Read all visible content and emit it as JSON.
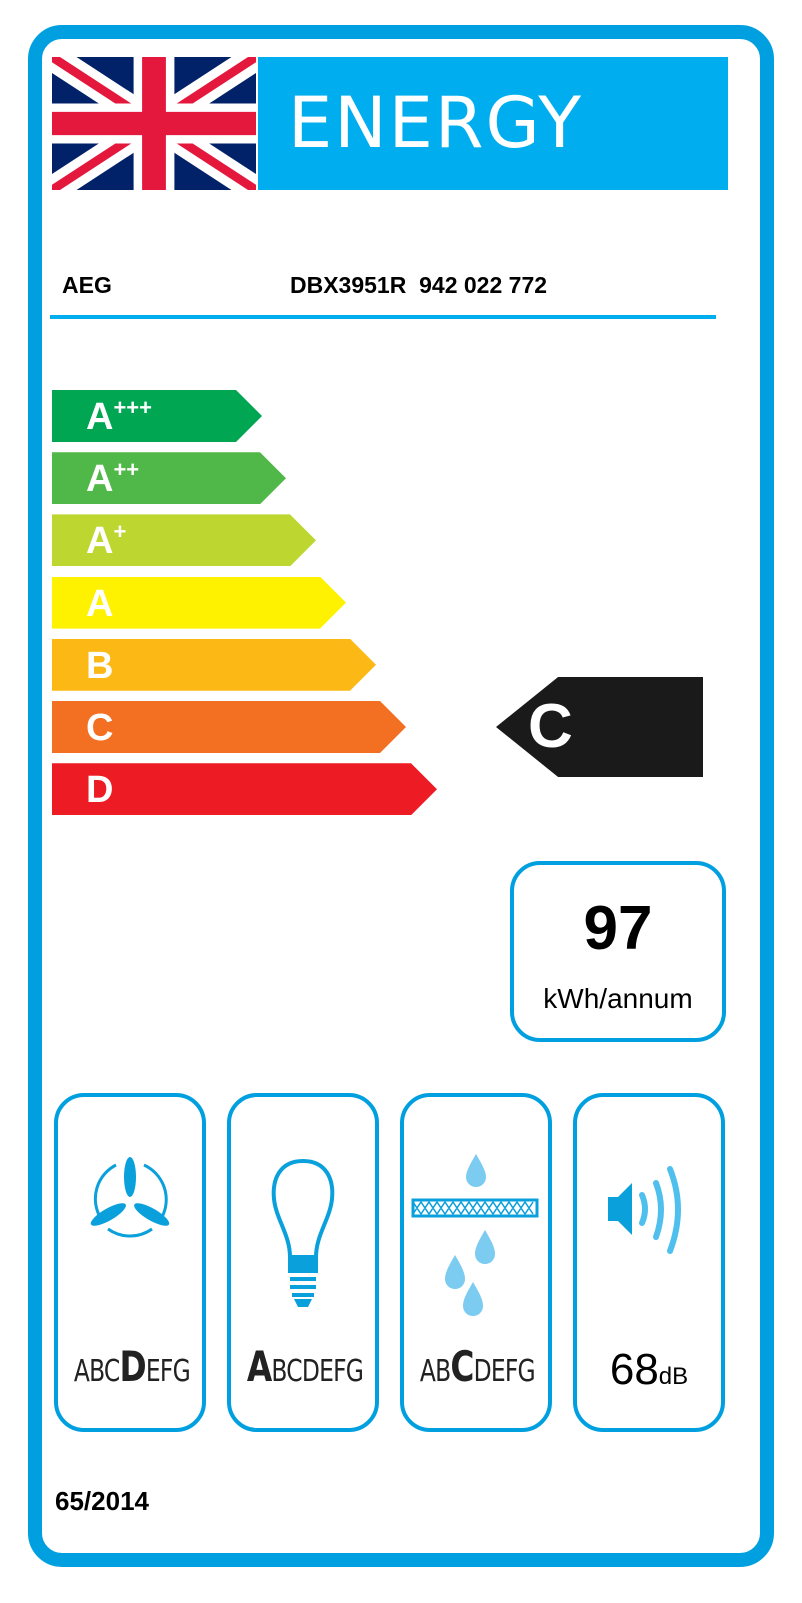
{
  "header": {
    "title": "ENERGY",
    "flag_icon": "union-jack-flag"
  },
  "product": {
    "brand": "AEG",
    "model": "DBX3951R  942 022 772"
  },
  "scale": [
    {
      "letter": "A",
      "plus": "+++",
      "color": "#00a651"
    },
    {
      "letter": "A",
      "plus": "++",
      "color": "#50b848"
    },
    {
      "letter": "A",
      "plus": "+",
      "color": "#bed630"
    },
    {
      "letter": "A",
      "plus": "",
      "color": "#fff200"
    },
    {
      "letter": "B",
      "plus": "",
      "color": "#fcb814"
    },
    {
      "letter": "C",
      "plus": "",
      "color": "#f36f21"
    },
    {
      "letter": "D",
      "plus": "",
      "color": "#ed1c24"
    }
  ],
  "rating": {
    "class": "C"
  },
  "consumption": {
    "value": "97",
    "unit": "kWh/annum"
  },
  "pictograms": [
    {
      "icon": "fan-icon",
      "before": "ABC",
      "selected": "D",
      "after": "EFG"
    },
    {
      "icon": "light-bulb-icon",
      "before": "",
      "selected": "A",
      "after": "BCDEFG"
    },
    {
      "icon": "grease-filter-icon",
      "before": "AB",
      "selected": "C",
      "after": "DEFG"
    },
    {
      "icon": "speaker-icon",
      "value": "68",
      "unit": "dB"
    }
  ],
  "regulation": "65/2014",
  "colors": {
    "accent": "#00aeef",
    "frame": "#00a0e0"
  }
}
